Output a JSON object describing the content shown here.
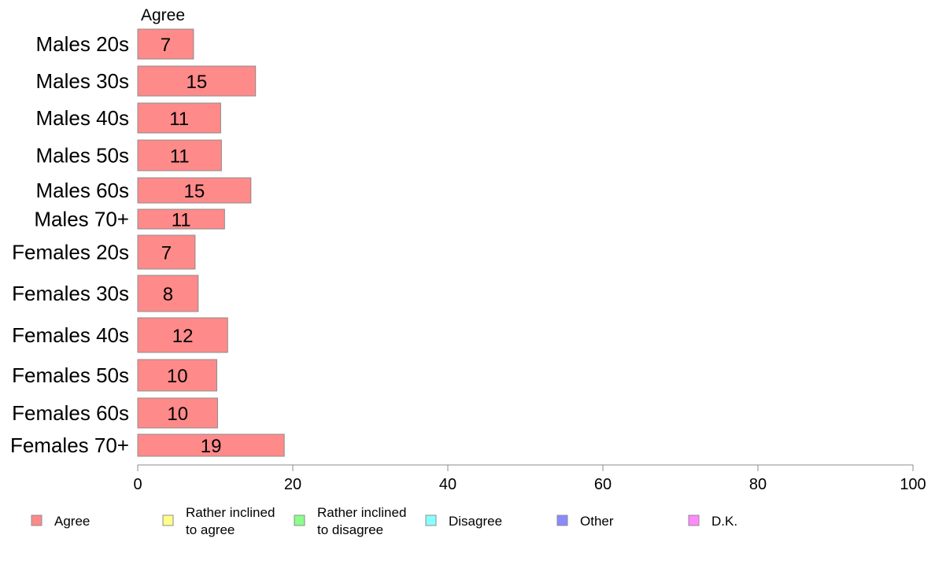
{
  "chart_data": {
    "type": "bar",
    "orientation": "horizontal",
    "stacked": true,
    "column_label": "Agree",
    "categories": [
      "Males 20s",
      "Males 30s",
      "Males 40s",
      "Males 50s",
      "Males 60s",
      "Males 70+",
      "Females 20s",
      "Females 30s",
      "Females 40s",
      "Females 50s",
      "Females 60s",
      "Females 70+"
    ],
    "series": [
      {
        "name": "Agree",
        "color": "#ff8a8a",
        "values": [
          7.2,
          15.2,
          10.7,
          10.8,
          14.6,
          11.2,
          7.4,
          7.8,
          11.6,
          10.2,
          10.3,
          18.9
        ],
        "labels": [
          "7",
          "15",
          "11",
          "11",
          "15",
          "11",
          "7",
          "8",
          "12",
          "10",
          "10",
          "19"
        ]
      }
    ],
    "legend": {
      "position": "bottom",
      "items": [
        {
          "lines": [
            "Agree"
          ],
          "color": "#ff8a8a"
        },
        {
          "lines": [
            "Rather inclined",
            "to agree"
          ],
          "color": "#ffff8a"
        },
        {
          "lines": [
            "Rather inclined",
            "to disagree"
          ],
          "color": "#8aff8a"
        },
        {
          "lines": [
            "Disagree"
          ],
          "color": "#8affff"
        },
        {
          "lines": [
            "Other"
          ],
          "color": "#8a8aff"
        },
        {
          "lines": [
            "D.K."
          ],
          "color": "#ff8aff"
        }
      ]
    },
    "xlim": [
      0,
      100
    ],
    "xticks": [
      "0",
      "20",
      "40",
      "60",
      "80",
      "100"
    ],
    "grid": false
  }
}
